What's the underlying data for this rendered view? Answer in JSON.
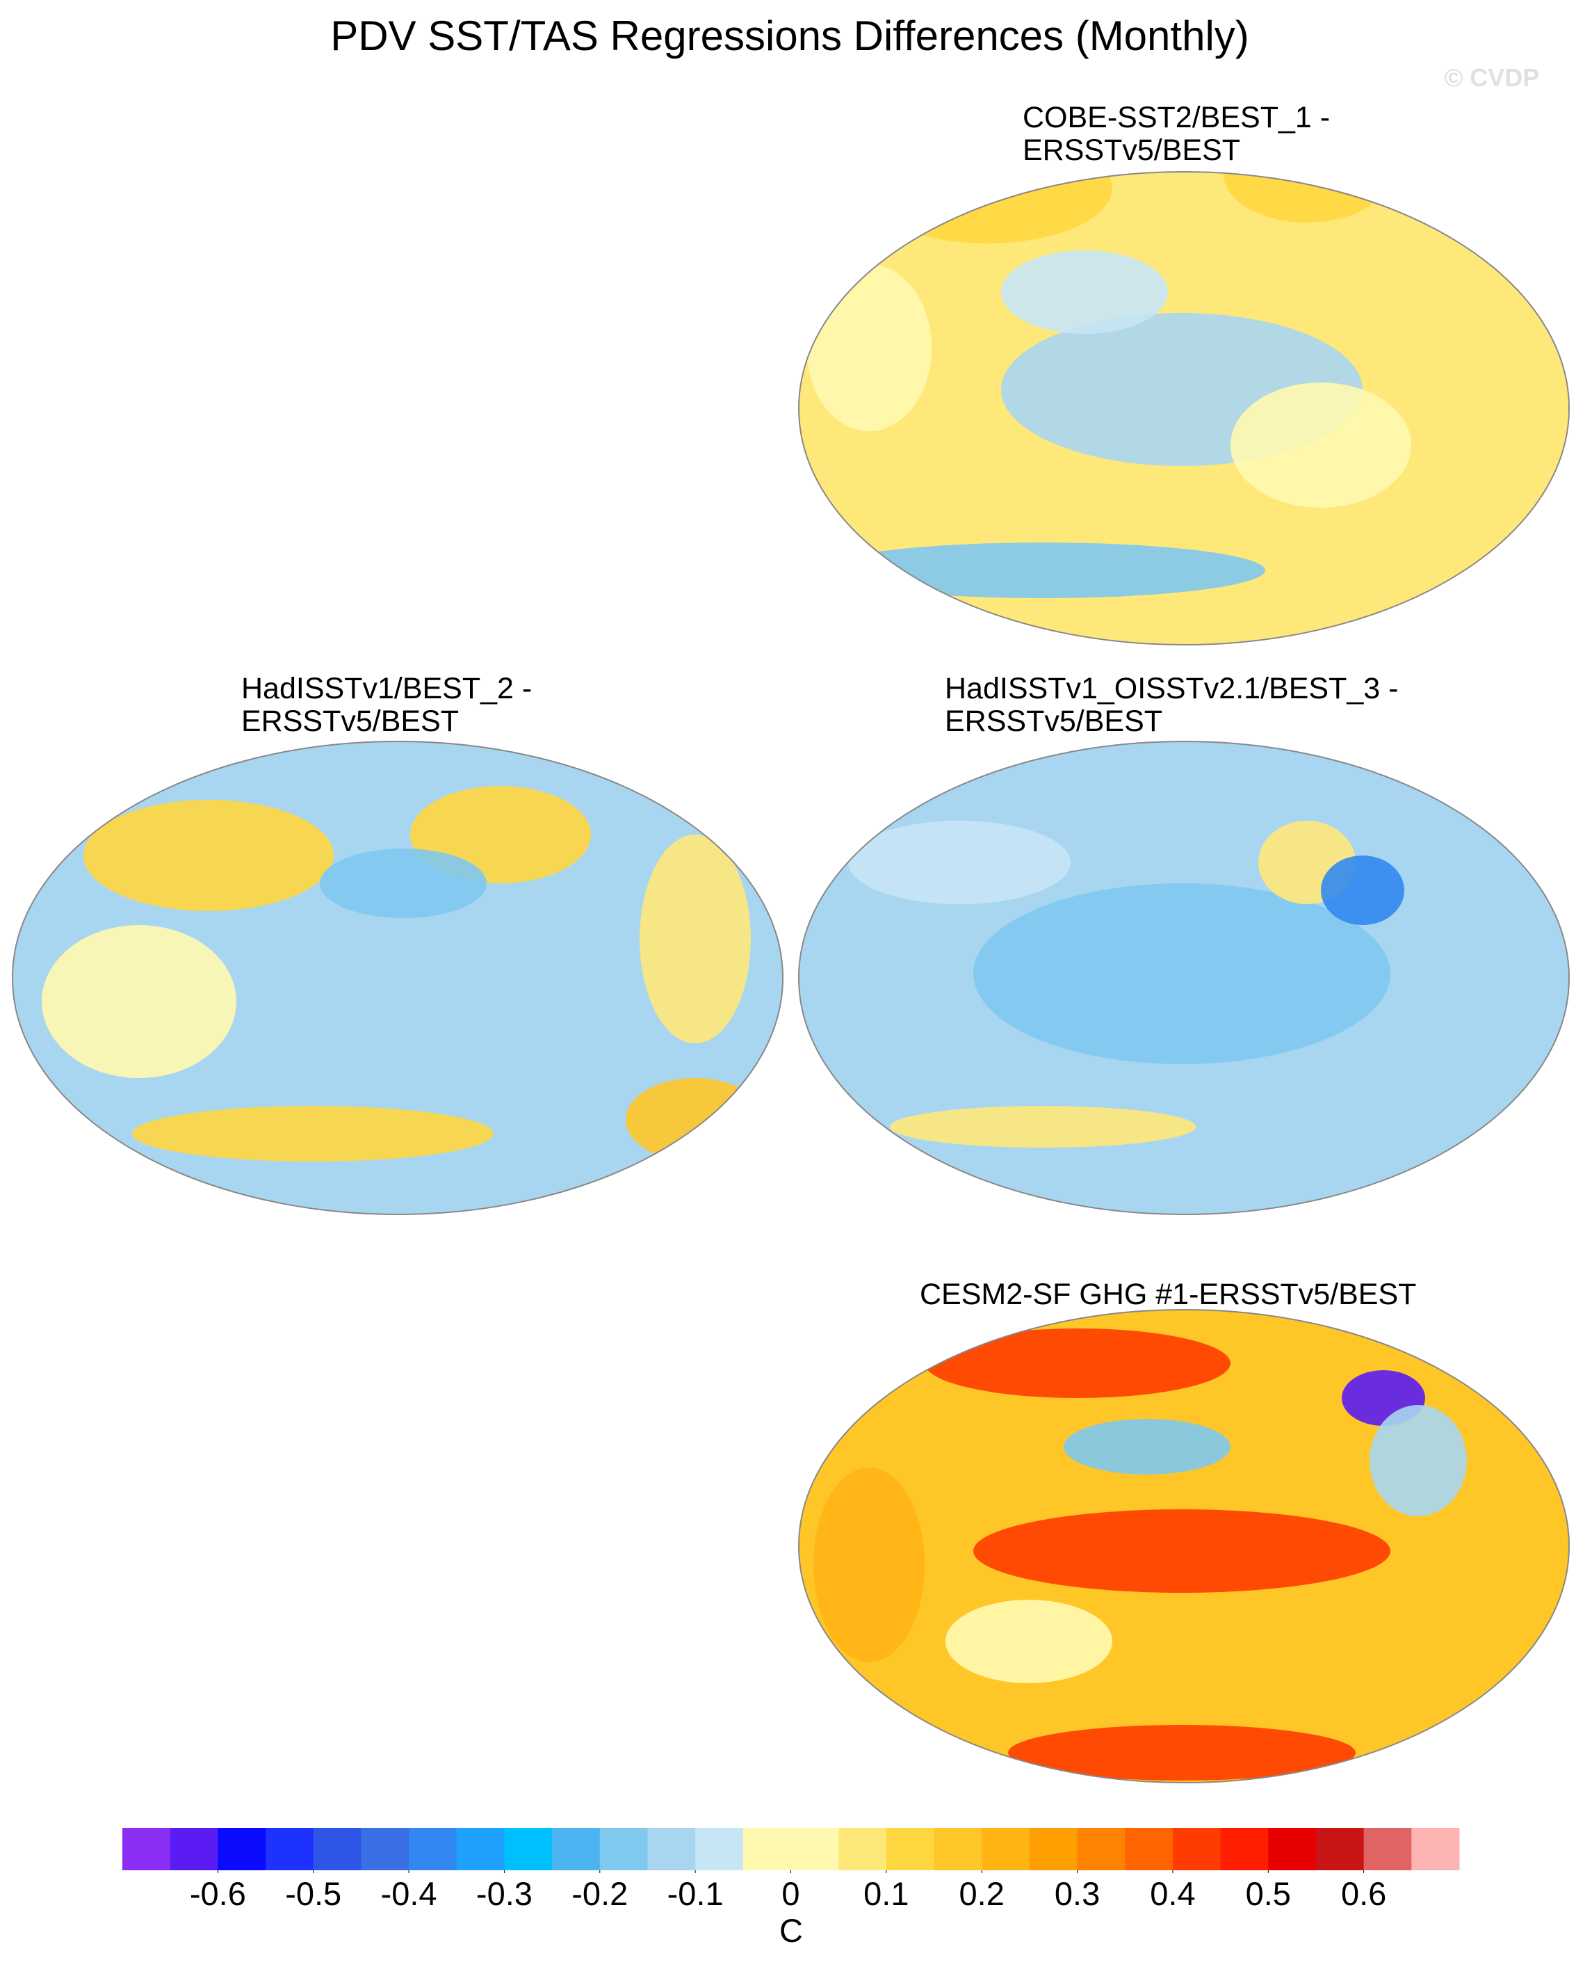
{
  "title": "PDV SST/TAS Regressions Differences (Monthly)",
  "watermark": "© CVDP",
  "panels": [
    {
      "title_lines": [
        "COBE-SST2/BEST_1 -",
        "ERSSTv5/BEST"
      ]
    },
    {
      "title_lines": [
        "HadISSTv1/BEST_2 -",
        "ERSSTv5/BEST"
      ]
    },
    {
      "title_lines": [
        "HadISSTv1_OISSTv2.1/BEST_3 -",
        "ERSSTv5/BEST"
      ]
    },
    {
      "title_lines": [
        "CESM2-SF GHG #1-ERSSTv5/BEST"
      ]
    }
  ],
  "colorbar": {
    "colors": [
      "#8c2ff5",
      "#5a1cf2",
      "#0a0aff",
      "#1e32ff",
      "#2f55e6",
      "#3a6fe6",
      "#3288f0",
      "#1ea0ff",
      "#00bfff",
      "#4cb4f0",
      "#7fc8ee",
      "#a8d6f0",
      "#c6e6f5",
      "#fff9b0",
      "#fff9b0",
      "#ffe87a",
      "#ffd740",
      "#ffc628",
      "#ffb414",
      "#ff9e00",
      "#ff8200",
      "#ff6400",
      "#ff3c00",
      "#ff1e00",
      "#e60000",
      "#c81414",
      "#e06464",
      "#ffb4b4"
    ],
    "lim": [
      -0.7,
      0.7
    ],
    "ticks": [
      -0.6,
      -0.5,
      -0.4,
      -0.3,
      -0.2,
      -0.1,
      0,
      0.1,
      0.2,
      0.3,
      0.4,
      0.5,
      0.6
    ],
    "unit": "C"
  }
}
